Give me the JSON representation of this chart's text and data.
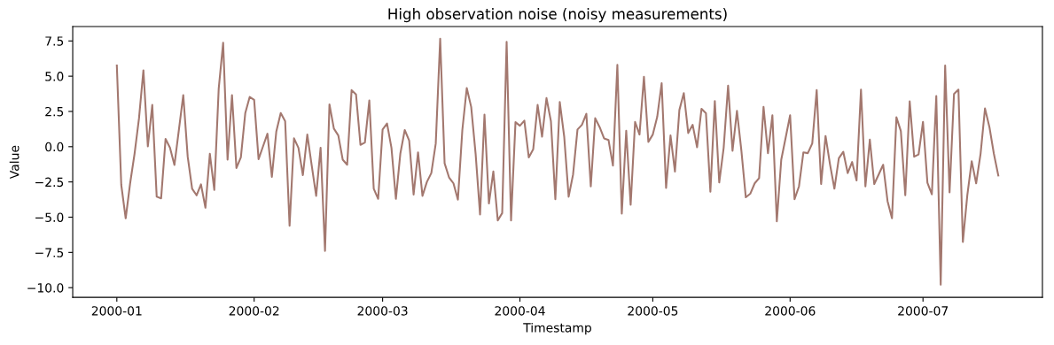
{
  "chart_data": {
    "type": "line",
    "title": "High observation noise (noisy measurements)",
    "xlabel": "Timestamp",
    "ylabel": "Value",
    "x": [
      "2000-01-01",
      "2000-01-02",
      "2000-01-03",
      "2000-01-04",
      "2000-01-05",
      "2000-01-06",
      "2000-01-07",
      "2000-01-08",
      "2000-01-09",
      "2000-01-10",
      "2000-01-11",
      "2000-01-12",
      "2000-01-13",
      "2000-01-14",
      "2000-01-15",
      "2000-01-16",
      "2000-01-17",
      "2000-01-18",
      "2000-01-19",
      "2000-01-20",
      "2000-01-21",
      "2000-01-22",
      "2000-01-23",
      "2000-01-24",
      "2000-01-25",
      "2000-01-26",
      "2000-01-27",
      "2000-01-28",
      "2000-01-29",
      "2000-01-30",
      "2000-01-31",
      "2000-02-01",
      "2000-02-02",
      "2000-02-03",
      "2000-02-04",
      "2000-02-05",
      "2000-02-06",
      "2000-02-07",
      "2000-02-08",
      "2000-02-09",
      "2000-02-10",
      "2000-02-11",
      "2000-02-12",
      "2000-02-13",
      "2000-02-14",
      "2000-02-15",
      "2000-02-16",
      "2000-02-17",
      "2000-02-18",
      "2000-02-19",
      "2000-02-20",
      "2000-02-21",
      "2000-02-22",
      "2000-02-23",
      "2000-02-24",
      "2000-02-25",
      "2000-02-26",
      "2000-02-27",
      "2000-02-28",
      "2000-02-29",
      "2000-03-01",
      "2000-03-02",
      "2000-03-03",
      "2000-03-04",
      "2000-03-05",
      "2000-03-06",
      "2000-03-07",
      "2000-03-08",
      "2000-03-09",
      "2000-03-10",
      "2000-03-11",
      "2000-03-12",
      "2000-03-13",
      "2000-03-14",
      "2000-03-15",
      "2000-03-16",
      "2000-03-17",
      "2000-03-18",
      "2000-03-19",
      "2000-03-20",
      "2000-03-21",
      "2000-03-22",
      "2000-03-23",
      "2000-03-24",
      "2000-03-25",
      "2000-03-26",
      "2000-03-27",
      "2000-03-28",
      "2000-03-29",
      "2000-03-30",
      "2000-03-31",
      "2000-04-01",
      "2000-04-02",
      "2000-04-03",
      "2000-04-04",
      "2000-04-05",
      "2000-04-06",
      "2000-04-07",
      "2000-04-08",
      "2000-04-09",
      "2000-04-10",
      "2000-04-11",
      "2000-04-12",
      "2000-04-13",
      "2000-04-14",
      "2000-04-15",
      "2000-04-16",
      "2000-04-17",
      "2000-04-18",
      "2000-04-19",
      "2000-04-20",
      "2000-04-21",
      "2000-04-22",
      "2000-04-23",
      "2000-04-24",
      "2000-04-25",
      "2000-04-26",
      "2000-04-27",
      "2000-04-28",
      "2000-04-29",
      "2000-04-30",
      "2000-05-01",
      "2000-05-02",
      "2000-05-03",
      "2000-05-04",
      "2000-05-05",
      "2000-05-06",
      "2000-05-07",
      "2000-05-08",
      "2000-05-09",
      "2000-05-10",
      "2000-05-11",
      "2000-05-12",
      "2000-05-13",
      "2000-05-14",
      "2000-05-15",
      "2000-05-16",
      "2000-05-17",
      "2000-05-18",
      "2000-05-19",
      "2000-05-20",
      "2000-05-21",
      "2000-05-22",
      "2000-05-23",
      "2000-05-24",
      "2000-05-25",
      "2000-05-26",
      "2000-05-27",
      "2000-05-28",
      "2000-05-29",
      "2000-05-30",
      "2000-05-31",
      "2000-06-01",
      "2000-06-02",
      "2000-06-03",
      "2000-06-04",
      "2000-06-05",
      "2000-06-06",
      "2000-06-07",
      "2000-06-08",
      "2000-06-09",
      "2000-06-10",
      "2000-06-11",
      "2000-06-12",
      "2000-06-13",
      "2000-06-14",
      "2000-06-15",
      "2000-06-16",
      "2000-06-17",
      "2000-06-18",
      "2000-06-19",
      "2000-06-20",
      "2000-06-21",
      "2000-06-22",
      "2000-06-23",
      "2000-06-24",
      "2000-06-25",
      "2000-06-26",
      "2000-06-27",
      "2000-06-28",
      "2000-06-29",
      "2000-06-30",
      "2000-07-01",
      "2000-07-02",
      "2000-07-03",
      "2000-07-04",
      "2000-07-05",
      "2000-07-06",
      "2000-07-07",
      "2000-07-08",
      "2000-07-09",
      "2000-07-10",
      "2000-07-11",
      "2000-07-12",
      "2000-07-13",
      "2000-07-14",
      "2000-07-15",
      "2000-07-16",
      "2000-07-17",
      "2000-07-18"
    ],
    "series": [
      {
        "color": "#a3786f",
        "values": [
          5.76,
          -2.71,
          -5.08,
          -2.6,
          -0.5,
          2.0,
          5.42,
          0.02,
          2.96,
          -3.55,
          -3.66,
          0.55,
          -0.08,
          -1.3,
          1.18,
          3.66,
          -0.71,
          -2.98,
          -3.45,
          -2.67,
          -4.33,
          -0.5,
          -3.07,
          4.12,
          7.37,
          -0.92,
          3.66,
          -1.51,
          -0.76,
          2.39,
          3.53,
          3.32,
          -0.88,
          0.02,
          0.92,
          -2.14,
          1.07,
          2.39,
          1.81,
          -5.61,
          0.59,
          -0.08,
          -2.02,
          0.86,
          -1.34,
          -3.49,
          -0.08,
          -7.39,
          3.0,
          1.28,
          0.8,
          -0.92,
          -1.28,
          4.01,
          3.7,
          0.13,
          0.29,
          3.28,
          -2.98,
          -3.7,
          1.22,
          1.64,
          -0.08,
          -3.7,
          -0.5,
          1.18,
          0.44,
          -3.4,
          -0.4,
          -3.49,
          -2.5,
          -1.87,
          0.23,
          7.65,
          -1.18,
          -2.18,
          -2.6,
          -3.76,
          1.18,
          4.16,
          2.82,
          -0.5,
          -4.81,
          2.27,
          -4.03,
          -1.76,
          -5.23,
          -4.71,
          7.44,
          -5.23,
          1.74,
          1.49,
          1.85,
          -0.76,
          -0.19,
          2.96,
          0.71,
          3.45,
          1.81,
          -3.72,
          3.17,
          0.71,
          -3.55,
          -1.97,
          1.22,
          1.55,
          2.33,
          -2.82,
          2.02,
          1.39,
          0.59,
          0.48,
          -1.34,
          5.8,
          -4.75,
          1.13,
          -4.12,
          1.76,
          0.86,
          4.96,
          0.34,
          0.86,
          2.12,
          4.5,
          -2.92,
          0.8,
          -1.76,
          2.6,
          3.8,
          0.97,
          1.55,
          -0.04,
          2.69,
          2.37,
          -3.19,
          3.24,
          -2.54,
          -0.08,
          4.33,
          -0.29,
          2.54,
          -0.29,
          -3.59,
          -3.34,
          -2.6,
          -2.23,
          2.82,
          -0.46,
          2.23,
          -5.29,
          -0.92,
          0.65,
          2.23,
          -3.72,
          -2.82,
          -0.4,
          -0.46,
          0.23,
          4.01,
          -2.65,
          0.76,
          -1.24,
          -2.98,
          -0.82,
          -0.36,
          -1.87,
          -1.09,
          -2.39,
          4.05,
          -2.82,
          0.5,
          -2.65,
          -1.97,
          -1.28,
          -3.87,
          -5.08,
          2.08,
          1.11,
          -3.45,
          3.21,
          -0.71,
          -0.55,
          1.76,
          -2.56,
          -3.38,
          3.59,
          -9.79,
          5.76,
          -3.24,
          3.74,
          4.05,
          -6.76,
          -3.45,
          -1.03,
          -2.6,
          -0.5,
          2.71,
          1.39,
          -0.5,
          -2.04
        ]
      }
    ],
    "xlim": [
      "1999-12-22T01:00",
      "2000-07-27T23:00"
    ],
    "ylim": [
      -10.69,
      8.52
    ],
    "xticks": [
      "2000-01",
      "2000-02",
      "2000-03",
      "2000-04",
      "2000-05",
      "2000-06",
      "2000-07"
    ],
    "yticks": [
      {
        "value": -10,
        "label": "−10.0"
      },
      {
        "value": -7.5,
        "label": "−7.5"
      },
      {
        "value": -5,
        "label": "−5.0"
      },
      {
        "value": -2.5,
        "label": "−2.5"
      },
      {
        "value": 0,
        "label": "0.0"
      },
      {
        "value": 2.5,
        "label": "2.5"
      },
      {
        "value": 5,
        "label": "5.0"
      },
      {
        "value": 7.5,
        "label": "7.5"
      }
    ],
    "grid": false,
    "legend": false,
    "marker": "none",
    "line_style": "solid"
  }
}
